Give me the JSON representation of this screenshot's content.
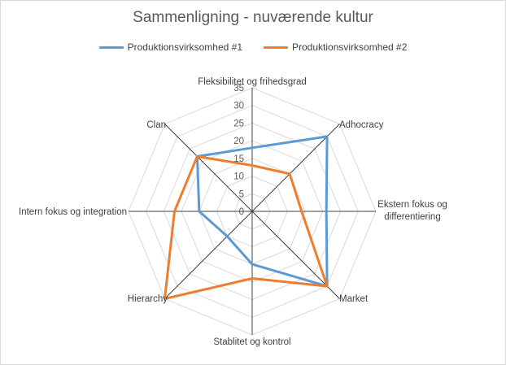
{
  "chart_data": {
    "type": "radar",
    "title": "Sammenligning - nuværende kultur",
    "categories": [
      [
        "Fleksibilitet og frihedsgrad"
      ],
      [
        "Adhocracy"
      ],
      [
        "Ekstern fokus og",
        "differentiering"
      ],
      [
        "Market"
      ],
      [
        "Stablitet og kontrol"
      ],
      [
        "Hierarchy"
      ],
      [
        "Intern fokus og integration"
      ],
      [
        "Clan"
      ]
    ],
    "series": [
      {
        "name": "Produktionsvirksomhed #1",
        "color": "#5b9bd5",
        "values": [
          18,
          30,
          21,
          30,
          15,
          10,
          15,
          22
        ]
      },
      {
        "name": "Produktionsvirksomhed #2",
        "color": "#ed7d31",
        "values": [
          13,
          15,
          14,
          30,
          19,
          35,
          22,
          22
        ]
      }
    ],
    "rlim": [
      0,
      35
    ],
    "ticks": [
      "0",
      "5",
      "10",
      "15",
      "20",
      "25",
      "30",
      "35"
    ],
    "grid": true,
    "legend_position": "top"
  }
}
